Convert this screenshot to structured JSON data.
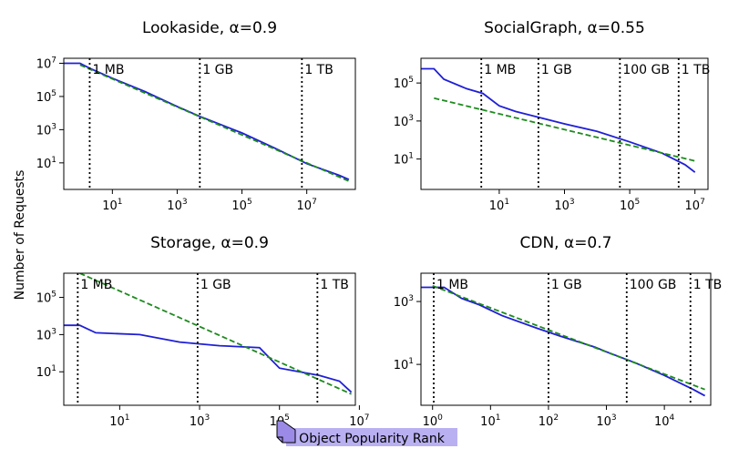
{
  "figure": {
    "ylabel": "Number of Requests",
    "xlabel": "Object Popularity Rank",
    "colors": {
      "empirical": "#1f1fd6",
      "fit": "#1f8a1f",
      "marker": "#000000",
      "highlight": "#b9b0f2",
      "cursor": "#9b8ae6"
    }
  },
  "chart_data": [
    {
      "type": "line",
      "title": "Lookaside, α=0.9",
      "xscale": "log",
      "yscale": "log",
      "xlim_log10": [
        -0.5,
        8.5
      ],
      "ylim_log10": [
        -0.6,
        7.3
      ],
      "xticks": [
        {
          "exp": 1,
          "label_base": "10",
          "label_exp": "1"
        },
        {
          "exp": 3,
          "label_base": "10",
          "label_exp": "3"
        },
        {
          "exp": 5,
          "label_base": "10",
          "label_exp": "5"
        },
        {
          "exp": 7,
          "label_base": "10",
          "label_exp": "7"
        }
      ],
      "yticks": [
        {
          "exp": 1,
          "label_base": "10",
          "label_exp": "1"
        },
        {
          "exp": 3,
          "label_base": "10",
          "label_exp": "3"
        },
        {
          "exp": 5,
          "label_base": "10",
          "label_exp": "5"
        },
        {
          "exp": 7,
          "label_base": "10",
          "label_exp": "7"
        }
      ],
      "size_markers": [
        {
          "label": "1 MB",
          "x_log10": 0.3
        },
        {
          "label": "1 GB",
          "x_log10": 3.7
        },
        {
          "label": "1 TB",
          "x_log10": 6.85
        }
      ],
      "series": [
        {
          "role": "empirical",
          "points_log10": [
            [
              -0.5,
              7.0
            ],
            [
              0.0,
              7.0
            ],
            [
              0.3,
              6.7
            ],
            [
              1.0,
              6.1
            ],
            [
              2.0,
              5.3
            ],
            [
              3.0,
              4.4
            ],
            [
              3.7,
              3.8
            ],
            [
              5.0,
              2.8
            ],
            [
              6.0,
              1.9
            ],
            [
              7.0,
              0.95
            ],
            [
              8.0,
              0.25
            ],
            [
              8.3,
              0.0
            ]
          ]
        },
        {
          "role": "fit",
          "points_log10": [
            [
              0.0,
              6.9
            ],
            [
              8.3,
              -0.1
            ]
          ]
        }
      ]
    },
    {
      "type": "line",
      "title": "SocialGraph, α=0.55",
      "xscale": "log",
      "yscale": "log",
      "xlim_log10": [
        -1.4,
        7.4
      ],
      "ylim_log10": [
        -0.6,
        6.3
      ],
      "xticks": [
        {
          "exp": 1,
          "label_base": "10",
          "label_exp": "1"
        },
        {
          "exp": 3,
          "label_base": "10",
          "label_exp": "3"
        },
        {
          "exp": 5,
          "label_base": "10",
          "label_exp": "5"
        },
        {
          "exp": 7,
          "label_base": "10",
          "label_exp": "7"
        }
      ],
      "yticks": [
        {
          "exp": 1,
          "label_base": "10",
          "label_exp": "1"
        },
        {
          "exp": 3,
          "label_base": "10",
          "label_exp": "3"
        },
        {
          "exp": 5,
          "label_base": "10",
          "label_exp": "5"
        }
      ],
      "size_markers": [
        {
          "label": "1 MB",
          "x_log10": 0.45
        },
        {
          "label": "1 GB",
          "x_log10": 2.2
        },
        {
          "label": "100 GB",
          "x_log10": 4.7
        },
        {
          "label": "1 TB",
          "x_log10": 6.5
        }
      ],
      "series": [
        {
          "role": "empirical",
          "points_log10": [
            [
              -1.4,
              5.75
            ],
            [
              -1.0,
              5.75
            ],
            [
              -0.7,
              5.2
            ],
            [
              0.0,
              4.7
            ],
            [
              0.5,
              4.45
            ],
            [
              1.0,
              3.8
            ],
            [
              1.5,
              3.5
            ],
            [
              2.2,
              3.2
            ],
            [
              3.0,
              2.85
            ],
            [
              4.0,
              2.45
            ],
            [
              5.0,
              1.9
            ],
            [
              6.0,
              1.3
            ],
            [
              6.7,
              0.7
            ],
            [
              7.0,
              0.3
            ]
          ]
        },
        {
          "role": "fit",
          "points_log10": [
            [
              -1.0,
              4.2
            ],
            [
              7.0,
              0.9
            ]
          ]
        }
      ]
    },
    {
      "type": "line",
      "title": "Storage, α=0.9",
      "xscale": "log",
      "yscale": "log",
      "xlim_log10": [
        -0.4,
        6.9
      ],
      "ylim_log10": [
        -0.8,
        6.3
      ],
      "xticks": [
        {
          "exp": 1,
          "label_base": "10",
          "label_exp": "1"
        },
        {
          "exp": 3,
          "label_base": "10",
          "label_exp": "3"
        },
        {
          "exp": 5,
          "label_base": "10",
          "label_exp": "5"
        },
        {
          "exp": 7,
          "label_base": "10",
          "label_exp": "7"
        }
      ],
      "yticks": [
        {
          "exp": 1,
          "label_base": "10",
          "label_exp": "1"
        },
        {
          "exp": 3,
          "label_base": "10",
          "label_exp": "3"
        },
        {
          "exp": 5,
          "label_base": "10",
          "label_exp": "5"
        }
      ],
      "size_markers": [
        {
          "label": "1 MB",
          "x_log10": -0.05
        },
        {
          "label": "1 GB",
          "x_log10": 2.95
        },
        {
          "label": "1 TB",
          "x_log10": 5.95
        }
      ],
      "series": [
        {
          "role": "empirical",
          "points_log10": [
            [
              -0.4,
              3.5
            ],
            [
              0.0,
              3.5
            ],
            [
              0.4,
              3.1
            ],
            [
              1.5,
              3.0
            ],
            [
              2.5,
              2.6
            ],
            [
              3.5,
              2.4
            ],
            [
              4.5,
              2.3
            ],
            [
              5.0,
              1.2
            ],
            [
              5.5,
              1.0
            ],
            [
              6.0,
              0.8
            ],
            [
              6.5,
              0.5
            ],
            [
              6.8,
              -0.1
            ]
          ]
        },
        {
          "role": "fit",
          "points_log10": [
            [
              0.0,
              6.3
            ],
            [
              6.8,
              -0.2
            ]
          ]
        }
      ]
    },
    {
      "type": "line",
      "title": "CDN, α=0.7",
      "xscale": "log",
      "yscale": "log",
      "xlim_log10": [
        -0.2,
        4.8
      ],
      "ylim_log10": [
        -0.3,
        3.9
      ],
      "xticks": [
        {
          "exp": 0,
          "label_base": "10",
          "label_exp": "0"
        },
        {
          "exp": 1,
          "label_base": "10",
          "label_exp": "1"
        },
        {
          "exp": 2,
          "label_base": "10",
          "label_exp": "2"
        },
        {
          "exp": 3,
          "label_base": "10",
          "label_exp": "3"
        },
        {
          "exp": 4,
          "label_base": "10",
          "label_exp": "4"
        }
      ],
      "yticks": [
        {
          "exp": 1,
          "label_base": "10",
          "label_exp": "1"
        },
        {
          "exp": 3,
          "label_base": "10",
          "label_exp": "3"
        }
      ],
      "size_markers": [
        {
          "label": "1 MB",
          "x_log10": 0.02
        },
        {
          "label": "1 GB",
          "x_log10": 2.0
        },
        {
          "label": "100 GB",
          "x_log10": 3.35
        },
        {
          "label": "1 TB",
          "x_log10": 4.45
        }
      ],
      "series": [
        {
          "role": "empirical",
          "points_log10": [
            [
              -0.2,
              3.45
            ],
            [
              0.2,
              3.45
            ],
            [
              0.5,
              3.1
            ],
            [
              0.8,
              2.9
            ],
            [
              1.2,
              2.55
            ],
            [
              1.8,
              2.15
            ],
            [
              2.2,
              1.9
            ],
            [
              2.8,
              1.55
            ],
            [
              3.0,
              1.4
            ],
            [
              3.5,
              1.05
            ],
            [
              4.0,
              0.65
            ],
            [
              4.5,
              0.2
            ],
            [
              4.7,
              0.0
            ]
          ]
        },
        {
          "role": "fit",
          "points_log10": [
            [
              0.0,
              3.5
            ],
            [
              4.7,
              0.2
            ]
          ]
        }
      ]
    }
  ]
}
